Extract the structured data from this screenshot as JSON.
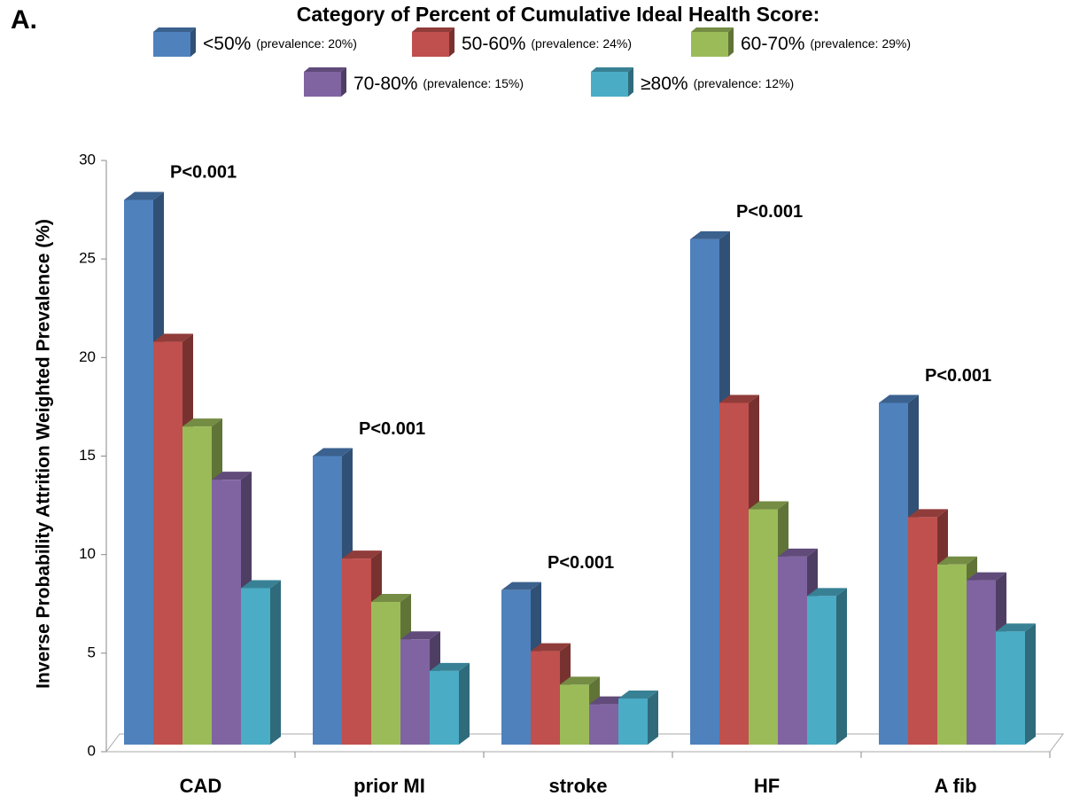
{
  "chart_data": {
    "type": "bar3d",
    "panel_label": "A.",
    "title": "Category of Percent of Cumulative Ideal Health Score:",
    "ylabel": "Inverse Probability Attrition Weighted Prevalence (%)",
    "categories": [
      "CAD",
      "prior MI",
      "stroke",
      "HF",
      "A fib"
    ],
    "annotations": [
      "P<0.001",
      "P<0.001",
      "P<0.001",
      "P<0.001",
      "P<0.001"
    ],
    "series": [
      {
        "name": "<50%",
        "prevalence_label": "(prevalence: 20%)",
        "color": "#4f81bd",
        "values": [
          28,
          15,
          8.2,
          26,
          17.7
        ]
      },
      {
        "name": "50-60%",
        "prevalence_label": "(prevalence: 24%)",
        "color": "#c0504d",
        "values": [
          20.8,
          9.8,
          5.1,
          17.7,
          11.9
        ]
      },
      {
        "name": "60-70%",
        "prevalence_label": "(prevalence: 29%)",
        "color": "#9bbb59",
        "values": [
          16.5,
          7.6,
          3.4,
          12.3,
          9.5
        ]
      },
      {
        "name": "70-80%",
        "prevalence_label": "(prevalence: 15%)",
        "color": "#8064a2",
        "values": [
          13.8,
          5.7,
          2.4,
          9.9,
          8.7
        ]
      },
      {
        "name": "≥80%",
        "prevalence_label": "(prevalence: 12%)",
        "color": "#4bacc6",
        "values": [
          8.3,
          4.1,
          2.7,
          7.9,
          6.1
        ]
      }
    ],
    "ylim": [
      0,
      30
    ],
    "yticks": [
      0,
      5,
      10,
      15,
      20,
      25,
      30
    ]
  }
}
